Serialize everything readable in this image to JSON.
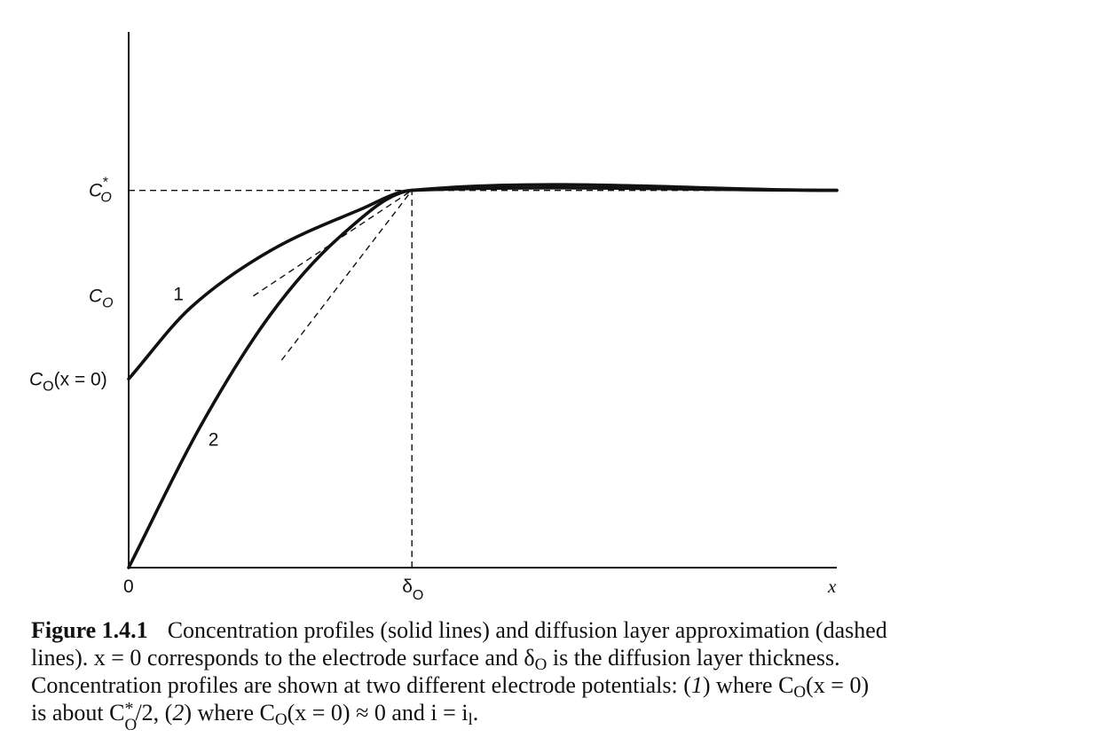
{
  "chart_data": {
    "type": "line",
    "xlabel": "x",
    "ylabel": "",
    "x_ticks": [
      {
        "text": "0"
      },
      {
        "text": "δ",
        "sub": "O"
      }
    ],
    "y_ticks": [
      {
        "text": "C",
        "sup": "*",
        "sub": "O"
      },
      {
        "text": "C",
        "sub": "O"
      },
      {
        "text": "C",
        "sub": "O",
        "rest": "(x = 0)"
      }
    ],
    "series": [
      {
        "name": "1",
        "style": "solid",
        "x": [
          0,
          0.22,
          0.5,
          0.82,
          1.0,
          2.5
        ],
        "y": [
          0.5,
          0.69,
          0.84,
          0.95,
          1.0,
          1.0
        ]
      },
      {
        "name": "2",
        "style": "solid",
        "x": [
          0,
          0.25,
          0.5,
          0.75,
          1.0,
          2.5
        ],
        "y": [
          0.0,
          0.37,
          0.67,
          0.88,
          1.0,
          1.0
        ]
      }
    ],
    "approximations": [
      {
        "style": "dashed",
        "x": [
          0.44,
          1.0
        ],
        "y": [
          0.72,
          1.0
        ]
      },
      {
        "style": "dashed",
        "x": [
          0.54,
          1.0
        ],
        "y": [
          0.55,
          1.0
        ]
      }
    ],
    "reference_lines": [
      {
        "style": "dashed",
        "orientation": "horizontal",
        "y": 1.0
      },
      {
        "style": "dashed",
        "orientation": "vertical",
        "x": 1.0
      }
    ],
    "xlim": [
      0,
      2.5
    ],
    "ylim": [
      0,
      1.42
    ],
    "grid": false
  },
  "caption": {
    "label": "Figure 1.4.1",
    "lines": [
      "Concentration profiles (solid lines) and diffusion layer approximation (dashed",
      "lines). x = 0 corresponds to the electrode surface and δ",
      "O",
      " is the diffusion layer thickness.",
      "Concentration profiles are shown at two different electrode potentials: (",
      "1",
      ") where C",
      "O",
      "(x = 0)",
      "is about C",
      "*",
      "O",
      "/2, (",
      "2",
      ") where C",
      "O",
      "(x = 0) ≈ 0 and i = i",
      "l",
      "."
    ]
  }
}
